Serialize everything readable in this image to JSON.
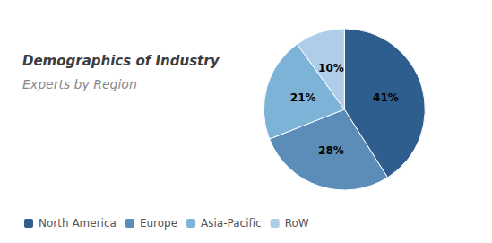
{
  "chart_data": {
    "type": "pie",
    "title": "Demographics of Industry",
    "subtitle": "Experts by Region",
    "categories": [
      "North America",
      "Europe",
      "Asia-Pacific",
      "RoW"
    ],
    "values": [
      41,
      28,
      21,
      10
    ],
    "value_labels": [
      "41%",
      "28%",
      "21%",
      "10%"
    ],
    "colors": [
      "#2E5E8E",
      "#5B8DB8",
      "#7EB3D8",
      "#AECDE8"
    ],
    "data_labels": true,
    "legend": "lower left"
  }
}
